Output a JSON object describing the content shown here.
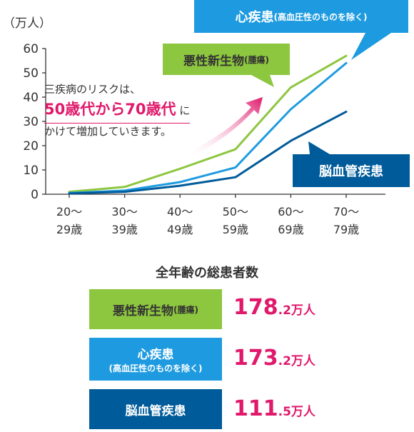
{
  "chart_data": {
    "type": "line",
    "ylabel": "（万人）",
    "ylim": [
      0,
      60
    ],
    "yticks": [
      "0",
      "10",
      "20",
      "30",
      "40",
      "50",
      "60"
    ],
    "categories": [
      [
        "20〜",
        "29歳"
      ],
      [
        "30〜",
        "39歳"
      ],
      [
        "40〜",
        "49歳"
      ],
      [
        "50〜",
        "59歳"
      ],
      [
        "60〜",
        "69歳"
      ],
      [
        "70〜",
        "79歳"
      ]
    ],
    "series": [
      {
        "name": "悪性新生物",
        "name_small": "(腫瘍)",
        "color": "#8dc63f",
        "values": [
          1,
          3,
          10.5,
          18.5,
          44,
          57
        ]
      },
      {
        "name": "心疾患",
        "name_small": "(高血圧性のものを除く)",
        "color": "#1e9be0",
        "values": [
          0.5,
          1.5,
          5,
          11,
          35,
          54
        ]
      },
      {
        "name": "脳血管疾患",
        "name_small": "",
        "color": "#005b9a",
        "values": [
          0.3,
          1,
          3.5,
          7,
          22,
          34
        ]
      }
    ],
    "annotation": {
      "line1": "三疾病のリスクは、",
      "line2_highlight": "50歳代から70歳代",
      "line2_rest": " に",
      "line3": "かけて増加していきます。",
      "arrow_color": "#e0196b"
    }
  },
  "totals": {
    "title": "全年齢の総患者数",
    "rows": [
      {
        "label": "悪性新生物",
        "label_small": "(腫瘍)",
        "value_int": "178",
        "value_dec": ".2",
        "unit": "万人",
        "color": "#8dc63f",
        "text_color": "#333333"
      },
      {
        "label": "心疾患",
        "label_small": "(高血圧性のものを除く)",
        "value_int": "173",
        "value_dec": ".2",
        "unit": "万人",
        "color": "#1e9be0",
        "text_color": "#ffffff"
      },
      {
        "label": "脳血管疾患",
        "label_small": "",
        "value_int": "111",
        "value_dec": ".5",
        "unit": "万人",
        "color": "#005b9a",
        "text_color": "#ffffff"
      }
    ]
  }
}
